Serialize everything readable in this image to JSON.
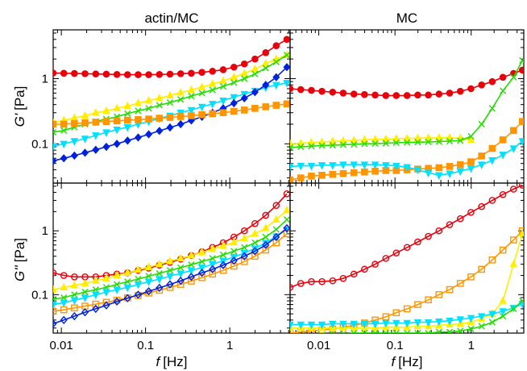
{
  "figure": {
    "col_titles": [
      "actin/MC",
      "MC"
    ],
    "xlabel_var": "f",
    "xlabel_unit": "[Hz]",
    "ylabel_top_var": "G'",
    "ylabel_top_unit": "[Pa]",
    "ylabel_bottom_var": "G''",
    "ylabel_bottom_unit": "[Pa]"
  },
  "chart_data": [
    {
      "type": "line",
      "title": "actin/MC",
      "xlabel": "",
      "ylabel": "G' [Pa]",
      "xscale": "log",
      "yscale": "log",
      "xlim": [
        0.008,
        5.2
      ],
      "ylim": [
        0.025,
        5.6
      ],
      "xticks": [
        0.01,
        0.1,
        1
      ],
      "xtick_labels": [
        "",
        "",
        ""
      ],
      "yticks": [
        0.1,
        1
      ],
      "ytick_labels": [
        "0.1",
        "1"
      ],
      "grid": false,
      "x": [
        0.008,
        0.0107,
        0.0143,
        0.0191,
        0.0256,
        0.0342,
        0.0457,
        0.0611,
        0.0817,
        0.109,
        0.146,
        0.195,
        0.261,
        0.349,
        0.467,
        0.624,
        0.835,
        1.12,
        1.49,
        1.99,
        2.67,
        3.56,
        4.76
      ],
      "series": [
        {
          "color": "#e8000b",
          "marker": "o",
          "fill": true,
          "values": [
            1.22,
            1.21,
            1.2,
            1.19,
            1.18,
            1.17,
            1.16,
            1.15,
            1.15,
            1.15,
            1.16,
            1.17,
            1.19,
            1.21,
            1.25,
            1.3,
            1.37,
            1.5,
            1.68,
            2.0,
            2.5,
            3.2,
            4.0
          ]
        },
        {
          "color": "#ffee00",
          "marker": "^",
          "fill": true,
          "values": [
            0.21,
            0.23,
            0.25,
            0.27,
            0.3,
            0.32,
            0.35,
            0.38,
            0.42,
            0.46,
            0.5,
            0.55,
            0.61,
            0.67,
            0.74,
            0.83,
            0.92,
            1.05,
            1.2,
            1.4,
            1.7,
            2.0,
            2.3
          ]
        },
        {
          "color": "#22dd00",
          "marker": "x",
          "fill": false,
          "values": [
            0.15,
            0.16,
            0.18,
            0.2,
            0.22,
            0.24,
            0.26,
            0.29,
            0.32,
            0.35,
            0.39,
            0.43,
            0.48,
            0.54,
            0.6,
            0.67,
            0.76,
            0.87,
            1.0,
            1.18,
            1.45,
            1.8,
            2.3
          ]
        },
        {
          "color": "#00e0ff",
          "marker": "v",
          "fill": true,
          "values": [
            0.092,
            0.1,
            0.11,
            0.12,
            0.135,
            0.15,
            0.165,
            0.18,
            0.2,
            0.22,
            0.245,
            0.27,
            0.3,
            0.33,
            0.37,
            0.41,
            0.46,
            0.52,
            0.58,
            0.65,
            0.73,
            0.8,
            0.86
          ]
        },
        {
          "color": "#0022dd",
          "marker": "d",
          "fill": true,
          "values": [
            0.055,
            0.06,
            0.066,
            0.073,
            0.081,
            0.09,
            0.1,
            0.112,
            0.125,
            0.14,
            0.158,
            0.178,
            0.2,
            0.228,
            0.26,
            0.3,
            0.35,
            0.42,
            0.5,
            0.62,
            0.8,
            1.05,
            1.5
          ]
        },
        {
          "color": "#ff9500",
          "marker": "s",
          "fill": true,
          "values": [
            0.2,
            0.2,
            0.205,
            0.21,
            0.215,
            0.22,
            0.225,
            0.23,
            0.235,
            0.24,
            0.247,
            0.254,
            0.262,
            0.27,
            0.28,
            0.29,
            0.3,
            0.315,
            0.33,
            0.35,
            0.37,
            0.39,
            0.41
          ]
        }
      ]
    },
    {
      "type": "line",
      "title": "MC",
      "xlabel": "",
      "ylabel": "",
      "xscale": "log",
      "yscale": "log",
      "xlim": [
        0.0042,
        4.9
      ],
      "ylim": [
        0.025,
        5.6
      ],
      "xticks": [
        0.01,
        0.1,
        1
      ],
      "xtick_labels": [
        "",
        "",
        ""
      ],
      "yticks": [
        0.1,
        1
      ],
      "ytick_labels": [
        "",
        ""
      ],
      "grid": false,
      "x": [
        0.0042,
        0.0058,
        0.008,
        0.011,
        0.0152,
        0.0209,
        0.0289,
        0.0398,
        0.0549,
        0.0758,
        0.104,
        0.144,
        0.199,
        0.274,
        0.378,
        0.522,
        0.72,
        0.993,
        1.37,
        1.89,
        2.61,
        3.6,
        4.7
      ],
      "series": [
        {
          "color": "#e8000b",
          "marker": "o",
          "fill": true,
          "values": [
            0.7,
            0.68,
            0.66,
            0.64,
            0.62,
            0.6,
            0.58,
            0.57,
            0.56,
            0.55,
            0.55,
            0.55,
            0.56,
            0.56,
            0.58,
            0.6,
            0.64,
            0.7,
            0.8,
            0.9,
            1.05,
            1.2,
            1.35
          ]
        },
        {
          "color": "#ffee00",
          "marker": "^",
          "fill": true,
          "values": [
            0.1,
            0.102,
            0.105,
            0.107,
            0.109,
            0.111,
            0.113,
            0.115,
            0.117,
            0.118,
            0.12,
            0.121,
            0.122,
            0.123,
            0.124,
            0.124,
            0.122,
            0.115,
            null,
            null,
            null,
            null,
            null
          ]
        },
        {
          "color": "#22dd00",
          "marker": "x",
          "fill": false,
          "values": [
            0.088,
            0.09,
            0.092,
            0.094,
            0.095,
            0.097,
            0.098,
            0.1,
            0.101,
            0.102,
            0.104,
            0.105,
            0.106,
            0.107,
            0.108,
            0.11,
            0.112,
            0.13,
            0.2,
            0.35,
            0.65,
            1.05,
            1.9
          ]
        },
        {
          "color": "#ff9500",
          "marker": "s",
          "fill": true,
          "values": [
            0.028,
            0.03,
            0.032,
            0.033,
            0.034,
            0.035,
            0.036,
            0.037,
            0.038,
            0.039,
            0.039,
            0.04,
            0.041,
            0.042,
            0.043,
            0.045,
            0.048,
            0.053,
            0.065,
            0.085,
            0.115,
            0.16,
            0.22
          ]
        },
        {
          "color": "#00e0ff",
          "marker": "v",
          "fill": true,
          "values": [
            0.045,
            0.046,
            0.046,
            0.047,
            0.047,
            0.048,
            0.048,
            0.048,
            0.048,
            0.047,
            0.046,
            0.044,
            0.04,
            0.036,
            0.033,
            0.035,
            0.038,
            0.042,
            0.048,
            0.056,
            0.068,
            0.085,
            0.11
          ]
        }
      ]
    },
    {
      "type": "line",
      "title": "",
      "xlabel": "f [Hz]",
      "ylabel": "G'' [Pa]",
      "xscale": "log",
      "yscale": "log",
      "xlim": [
        0.008,
        5.2
      ],
      "ylim": [
        0.025,
        5.6
      ],
      "xticks": [
        0.01,
        0.1,
        1
      ],
      "xtick_labels": [
        "0.01",
        "0.1",
        "1"
      ],
      "yticks": [
        0.1,
        1
      ],
      "ytick_labels": [
        "0.1",
        "1"
      ],
      "grid": false,
      "x": [
        0.008,
        0.0107,
        0.0143,
        0.0191,
        0.0256,
        0.0342,
        0.0457,
        0.0611,
        0.0817,
        0.109,
        0.146,
        0.195,
        0.261,
        0.349,
        0.467,
        0.624,
        0.835,
        1.12,
        1.49,
        1.99,
        2.67,
        3.56,
        4.76
      ],
      "series": [
        {
          "color": "#e8000b",
          "marker": "o",
          "fill": false,
          "values": [
            0.22,
            0.2,
            0.19,
            0.19,
            0.19,
            0.2,
            0.21,
            0.22,
            0.24,
            0.26,
            0.29,
            0.32,
            0.36,
            0.41,
            0.47,
            0.55,
            0.65,
            0.8,
            1.0,
            1.3,
            1.75,
            2.5,
            3.8
          ]
        },
        {
          "color": "#ffee00",
          "marker": "^",
          "fill": true,
          "values": [
            0.12,
            0.13,
            0.14,
            0.15,
            0.165,
            0.18,
            0.2,
            0.22,
            0.245,
            0.27,
            0.3,
            0.335,
            0.37,
            0.41,
            0.46,
            0.52,
            0.58,
            0.66,
            0.76,
            0.9,
            1.1,
            1.5,
            2.1
          ]
        },
        {
          "color": "#22dd00",
          "marker": "x",
          "fill": false,
          "values": [
            0.085,
            0.09,
            0.1,
            0.11,
            0.12,
            0.13,
            0.145,
            0.16,
            0.175,
            0.195,
            0.215,
            0.24,
            0.265,
            0.295,
            0.33,
            0.37,
            0.42,
            0.48,
            0.55,
            0.65,
            0.8,
            1.05,
            1.5
          ]
        },
        {
          "color": "#00e0ff",
          "marker": "v",
          "fill": true,
          "values": [
            0.07,
            0.075,
            0.082,
            0.09,
            0.1,
            0.11,
            0.12,
            0.13,
            0.145,
            0.16,
            0.175,
            0.195,
            0.215,
            0.24,
            0.265,
            0.3,
            0.34,
            0.39,
            0.45,
            0.53,
            0.65,
            0.82,
            1.05
          ]
        },
        {
          "color": "#ff9500",
          "marker": "s",
          "fill": false,
          "values": [
            0.055,
            0.058,
            0.062,
            0.066,
            0.071,
            0.076,
            0.082,
            0.089,
            0.097,
            0.106,
            0.117,
            0.13,
            0.145,
            0.163,
            0.185,
            0.21,
            0.24,
            0.28,
            0.33,
            0.4,
            0.5,
            0.65,
            0.9
          ]
        },
        {
          "color": "#0022dd",
          "marker": "d",
          "fill": false,
          "values": [
            0.035,
            0.04,
            0.046,
            0.053,
            0.06,
            0.068,
            0.078,
            0.088,
            0.1,
            0.113,
            0.128,
            0.145,
            0.165,
            0.19,
            0.22,
            0.25,
            0.29,
            0.34,
            0.4,
            0.48,
            0.6,
            0.8,
            1.1
          ]
        }
      ]
    },
    {
      "type": "line",
      "title": "",
      "xlabel": "f [Hz]",
      "ylabel": "",
      "xscale": "log",
      "yscale": "log",
      "xlim": [
        0.0042,
        4.9
      ],
      "ylim": [
        0.025,
        5.6
      ],
      "xticks": [
        0.01,
        0.1,
        1
      ],
      "xtick_labels": [
        "0.01",
        "0.1",
        "1"
      ],
      "yticks": [
        0.1,
        1
      ],
      "ytick_labels": [
        "",
        ""
      ],
      "grid": false,
      "x": [
        0.0042,
        0.0058,
        0.008,
        0.011,
        0.0152,
        0.0209,
        0.0289,
        0.0398,
        0.0549,
        0.0758,
        0.104,
        0.144,
        0.199,
        0.274,
        0.378,
        0.522,
        0.72,
        0.993,
        1.37,
        1.89,
        2.61,
        3.6,
        4.7
      ],
      "series": [
        {
          "color": "#e8000b",
          "marker": "o",
          "fill": false,
          "values": [
            0.13,
            0.15,
            0.16,
            0.16,
            0.165,
            0.18,
            0.21,
            0.25,
            0.3,
            0.37,
            0.45,
            0.55,
            0.67,
            0.82,
            1.0,
            1.25,
            1.55,
            1.95,
            2.4,
            3.0,
            3.7,
            4.5,
            5.2
          ]
        },
        {
          "color": "#ff9500",
          "marker": "s",
          "fill": false,
          "values": [
            0.025,
            0.026,
            0.027,
            0.028,
            0.029,
            0.031,
            0.033,
            0.036,
            0.04,
            0.045,
            0.052,
            0.06,
            0.07,
            0.083,
            0.1,
            0.12,
            0.15,
            0.19,
            0.25,
            0.35,
            0.5,
            0.72,
            1.0
          ]
        },
        {
          "color": "#ffee00",
          "marker": "^",
          "fill": true,
          "values": [
            0.03,
            0.03,
            0.03,
            0.03,
            0.03,
            0.03,
            0.03,
            0.03,
            0.03,
            0.031,
            0.031,
            0.031,
            0.032,
            0.032,
            0.033,
            0.034,
            0.035,
            0.037,
            0.042,
            0.05,
            0.08,
            0.3,
            0.9
          ]
        },
        {
          "color": "#00e0ff",
          "marker": "v",
          "fill": true,
          "values": [
            0.034,
            0.034,
            0.034,
            0.034,
            0.035,
            0.035,
            0.035,
            0.035,
            0.035,
            0.036,
            0.036,
            0.036,
            0.037,
            0.037,
            0.038,
            0.039,
            0.041,
            0.043,
            0.046,
            0.05,
            0.055,
            0.062,
            0.072
          ]
        },
        {
          "color": "#22dd00",
          "marker": "x",
          "fill": false,
          "values": [
            0.02,
            0.021,
            0.022,
            0.023,
            0.024,
            0.024,
            0.025,
            0.025,
            0.025,
            0.025,
            0.025,
            0.025,
            0.025,
            0.025,
            0.026,
            0.026,
            0.027,
            0.029,
            0.032,
            0.037,
            0.046,
            0.06,
            0.08
          ]
        }
      ]
    }
  ]
}
